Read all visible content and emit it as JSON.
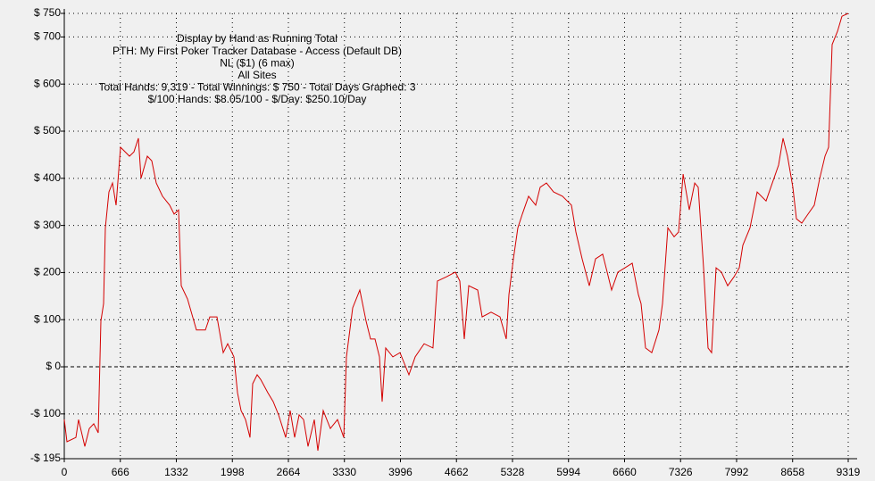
{
  "chart_data": {
    "type": "line",
    "annotations": [
      "Display by Hand as Running Total",
      "PTH: My First Poker Tracker Database - Access (Default DB)",
      "NL ($1) (6 max)",
      "All Sites",
      "Total Hands: 9,319 - Total Winnings: $ 750 - Total Days Graphed: 3",
      "$/100 Hands: $8.05/100 - $/Day: $250.10/Day"
    ],
    "x": [
      0,
      32,
      138,
      170,
      244,
      297,
      350,
      403,
      435,
      467,
      488,
      531,
      573,
      616,
      669,
      775,
      828,
      881,
      913,
      987,
      1040,
      1093,
      1168,
      1252,
      1306,
      1359,
      1390,
      1465,
      1571,
      1677,
      1730,
      1815,
      1889,
      1942,
      2017,
      2059,
      2102,
      2155,
      2208,
      2240,
      2293,
      2335,
      2420,
      2484,
      2547,
      2632,
      2685,
      2738,
      2791,
      2845,
      2898,
      2972,
      3014,
      3078,
      3163,
      3248,
      3322,
      3354,
      3428,
      3513,
      3588,
      3641,
      3694,
      3747,
      3779,
      3821,
      3906,
      3991,
      4097,
      4171,
      4277,
      4383,
      4436,
      4543,
      4649,
      4702,
      4755,
      4808,
      4914,
      4967,
      5073,
      5180,
      5254,
      5286,
      5339,
      5392,
      5445,
      5519,
      5604,
      5657,
      5732,
      5816,
      5923,
      6029,
      6082,
      6156,
      6241,
      6315,
      6400,
      6506,
      6581,
      6665,
      6751,
      6825,
      6857,
      6910,
      6984,
      7069,
      7111,
      7175,
      7249,
      7302,
      7356,
      7430,
      7494,
      7536,
      7600,
      7653,
      7695,
      7748,
      7812,
      7886,
      7961,
      8024,
      8067,
      8152,
      8236,
      8342,
      8417,
      8491,
      8544,
      8597,
      8661,
      8703,
      8767,
      8841,
      8916,
      8980,
      9043,
      9086,
      9128,
      9192,
      9245,
      9319
    ],
    "series": [
      {
        "color": "#d40000",
        "values": [
          -112,
          -159,
          -150,
          -112,
          -169,
          -131,
          -121,
          -140,
          97,
          134,
          295,
          371,
          390,
          343,
          466,
          447,
          456,
          485,
          400,
          447,
          437,
          390,
          362,
          343,
          324,
          333,
          172,
          144,
          78,
          78,
          106,
          106,
          30,
          49,
          21,
          -55,
          -93,
          -112,
          -150,
          -36,
          -17,
          -27,
          -55,
          -74,
          -102,
          -150,
          -93,
          -150,
          -102,
          -112,
          -169,
          -112,
          -178,
          -93,
          -131,
          -112,
          -150,
          21,
          125,
          163,
          97,
          59,
          59,
          21,
          -74,
          40,
          21,
          30,
          -17,
          21,
          49,
          40,
          182,
          191,
          201,
          182,
          59,
          172,
          163,
          106,
          116,
          106,
          59,
          153,
          229,
          295,
          324,
          362,
          343,
          381,
          390,
          371,
          362,
          343,
          286,
          229,
          172,
          229,
          239,
          163,
          201,
          210,
          220,
          153,
          134,
          40,
          30,
          78,
          134,
          295,
          276,
          286,
          409,
          333,
          390,
          381,
          210,
          40,
          30,
          210,
          201,
          172,
          191,
          210,
          258,
          295,
          371,
          352,
          390,
          428,
          485,
          447,
          381,
          314,
          305,
          324,
          343,
          400,
          447,
          466,
          684,
          712,
          744,
          750
        ]
      }
    ],
    "xlim": [
      0,
      9319
    ],
    "xticks": [
      0,
      666,
      1332,
      1998,
      2664,
      3330,
      3996,
      4662,
      5328,
      5994,
      6660,
      7326,
      7992,
      8658,
      9319
    ],
    "ylim": [
      -195,
      750
    ],
    "yticks": [
      {
        "value": -195,
        "label": "-$ 195"
      },
      {
        "value": -100,
        "label": "-$ 100"
      },
      {
        "value": 0,
        "label": "$ 0"
      },
      {
        "value": 100,
        "label": "$ 100"
      },
      {
        "value": 200,
        "label": "$ 200"
      },
      {
        "value": 300,
        "label": "$ 300"
      },
      {
        "value": 400,
        "label": "$ 400"
      },
      {
        "value": 500,
        "label": "$ 500"
      },
      {
        "value": 600,
        "label": "$ 600"
      },
      {
        "value": 700,
        "label": "$ 700"
      },
      {
        "value": 750,
        "label": "$ 750"
      }
    ],
    "grid": true
  }
}
